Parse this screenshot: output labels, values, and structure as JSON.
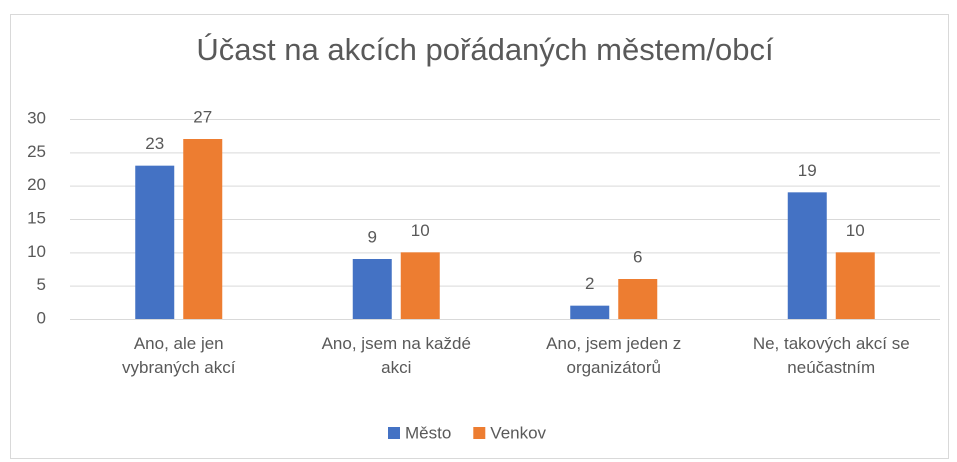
{
  "chart_data": {
    "type": "bar",
    "title": "Účast na akcích pořádaných městem/obcí",
    "categories": [
      "Ano, ale jen vybraných akcí",
      "Ano, jsem na každé akci",
      "Ano, jsem jeden z organizátorů",
      "Ne, takových akcí se neúčastním"
    ],
    "series": [
      {
        "name": "Město",
        "color": "#4472c4",
        "values": [
          23,
          9,
          2,
          19
        ]
      },
      {
        "name": "Venkov",
        "color": "#ed7d31",
        "values": [
          27,
          10,
          6,
          10
        ]
      }
    ],
    "ylim": [
      0,
      30
    ],
    "yticks": [
      0,
      5,
      10,
      15,
      20,
      25,
      30
    ],
    "grid": true,
    "legend": "bottom"
  }
}
